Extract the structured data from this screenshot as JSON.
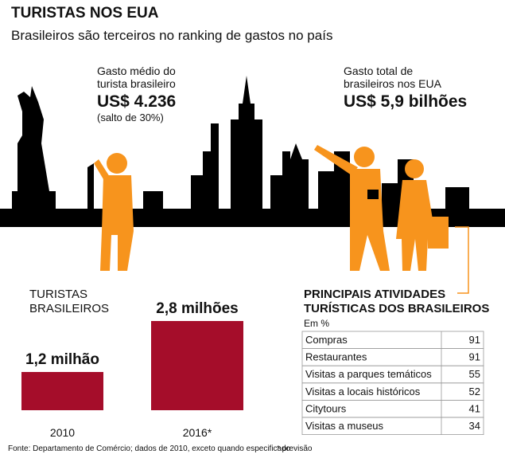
{
  "header": {
    "title": "TURISTAS NOS EUA",
    "subtitle": "Brasileiros são terceiros no ranking de gastos no país"
  },
  "stats": [
    {
      "label_1": "Gasto médio do",
      "label_2": "turista brasileiro",
      "value": "US$ 4.236",
      "note": "(salto de 30%)"
    },
    {
      "label_1": "Gasto total de",
      "label_2": "brasileiros nos EUA",
      "value": "US$ 5,9 bilhões"
    }
  ],
  "chart_data": {
    "type": "bar",
    "title_1": "TURISTAS",
    "title_2": "BRASILEIROS",
    "categories": [
      "2010",
      "2016*"
    ],
    "values": [
      1.2,
      2.8
    ],
    "value_labels": [
      "1,2 milhão",
      "2,8 milhões"
    ],
    "color": "#a50d2a"
  },
  "table": {
    "title_1": "PRINCIPAIS ATIVIDADES",
    "title_2": "TURÍSTICAS DOS BRASILEIROS",
    "unit": "Em %",
    "rows": [
      [
        "Compras",
        "91"
      ],
      [
        "Restaurantes",
        "91"
      ],
      [
        "Visitas a parques temáticos",
        "55"
      ],
      [
        "Visitas a locais históricos",
        "52"
      ],
      [
        "Citytours",
        "41"
      ],
      [
        "Visitas a museus",
        "34"
      ]
    ]
  },
  "footer": {
    "source": "Fonte: Departamento de Comércio; dados de 2010, exceto quando especificado",
    "note": "* previsão"
  }
}
